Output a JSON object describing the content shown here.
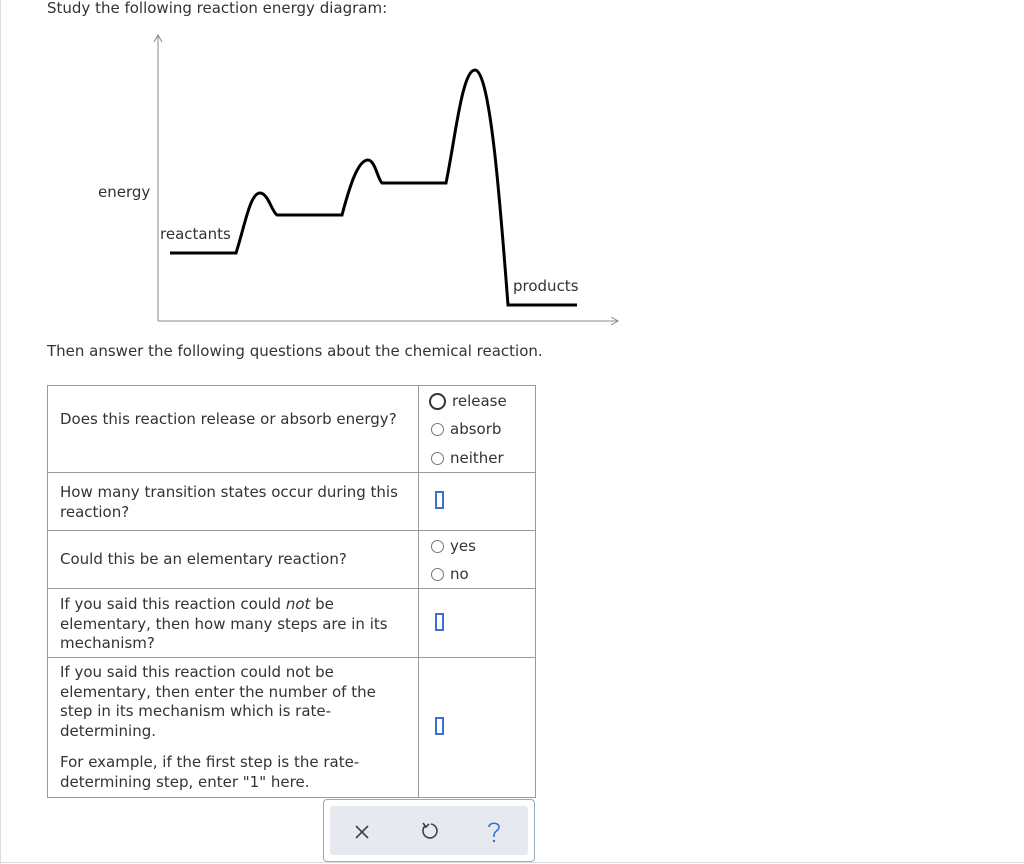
{
  "header": {
    "instruction": "Study the following reaction energy diagram:"
  },
  "diagram": {
    "y_axis_label": "energy",
    "start_label": "reactants",
    "end_label": "products"
  },
  "prompt": "Then answer the following questions about the chemical reaction.",
  "table": {
    "rows": [
      {
        "question": "Does this reaction release or absorb energy?",
        "options": [
          "release",
          "absorb",
          "neither"
        ]
      },
      {
        "question": "How many transition states occur during this reaction?"
      },
      {
        "question": "Could this be an elementary reaction?",
        "options": [
          "yes",
          "no"
        ]
      },
      {
        "question_parts": [
          "If you said this reaction could ",
          "not",
          " be elementary, then how many steps are in its mechanism?"
        ]
      },
      {
        "question": "If you said this reaction could not be elementary, then enter the number of the step in its mechanism which is rate-determining.",
        "note": "For example, if the first step is the rate-determining step, enter \"1\" here."
      }
    ]
  }
}
